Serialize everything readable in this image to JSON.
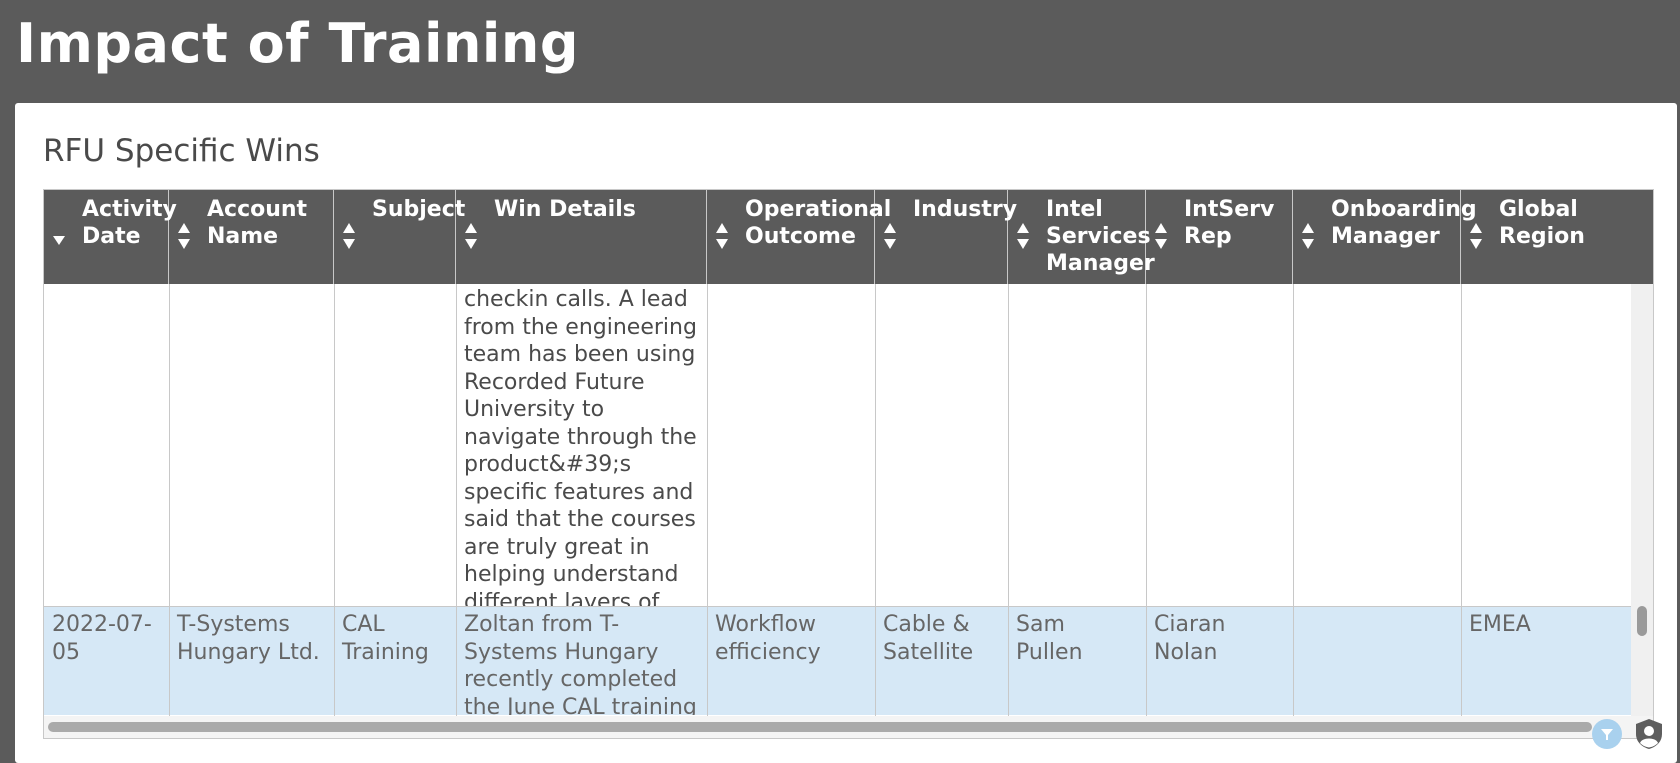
{
  "page": {
    "title": "Impact of Training"
  },
  "panel": {
    "title": "RFU Specific Wins"
  },
  "table": {
    "columns": [
      {
        "label": "Activity\nDate",
        "sort": "desc"
      },
      {
        "label": "Account\nName",
        "sort": "none"
      },
      {
        "label": "Subject",
        "sort": "none"
      },
      {
        "label": "Win Details",
        "sort": "none"
      },
      {
        "label": "Operational\nOutcome",
        "sort": "none"
      },
      {
        "label": "Industry",
        "sort": "none"
      },
      {
        "label": "Intel\nServices\nManager",
        "sort": "none"
      },
      {
        "label": "IntServ\nRep",
        "sort": "none"
      },
      {
        "label": "Onboarding\nManager",
        "sort": "none"
      },
      {
        "label": "Global\nRegion",
        "sort": "none"
      }
    ],
    "rows": [
      {
        "activity_date": "",
        "account_name": "",
        "subject": "",
        "win_details": "checkin calls. A lead from the engineering team has been using Recorded Future University to navigate through the product&#39;s specific features and said that the courses are truly great in helping understand different layers of the product.",
        "operational_outcome": "",
        "industry": "",
        "intel_services_manager": "",
        "intserv_rep": "",
        "onboarding_manager": "",
        "global_region": ""
      },
      {
        "activity_date": "2022-07-05",
        "account_name": "T-Systems Hungary Ltd.",
        "subject": "CAL Training",
        "win_details": "Zoltan from T-Systems Hungary recently completed the June CAL training and provided",
        "operational_outcome": "Workflow efficiency",
        "industry": "Cable & Satellite",
        "intel_services_manager": "Sam Pullen",
        "intserv_rep": "Ciaran Nolan",
        "onboarding_manager": "",
        "global_region": "EMEA"
      }
    ]
  },
  "icons": {
    "sort": "sort-arrows-icon",
    "sort_desc": "sort-desc-icon",
    "filter": "filter-icon",
    "shield": "user-shield-icon"
  },
  "colors": {
    "page_bg": "#5b5b5b",
    "header_bg": "#5b5b5b",
    "selected_row": "#d6e8f6",
    "filter_button": "#a9d1ee"
  }
}
